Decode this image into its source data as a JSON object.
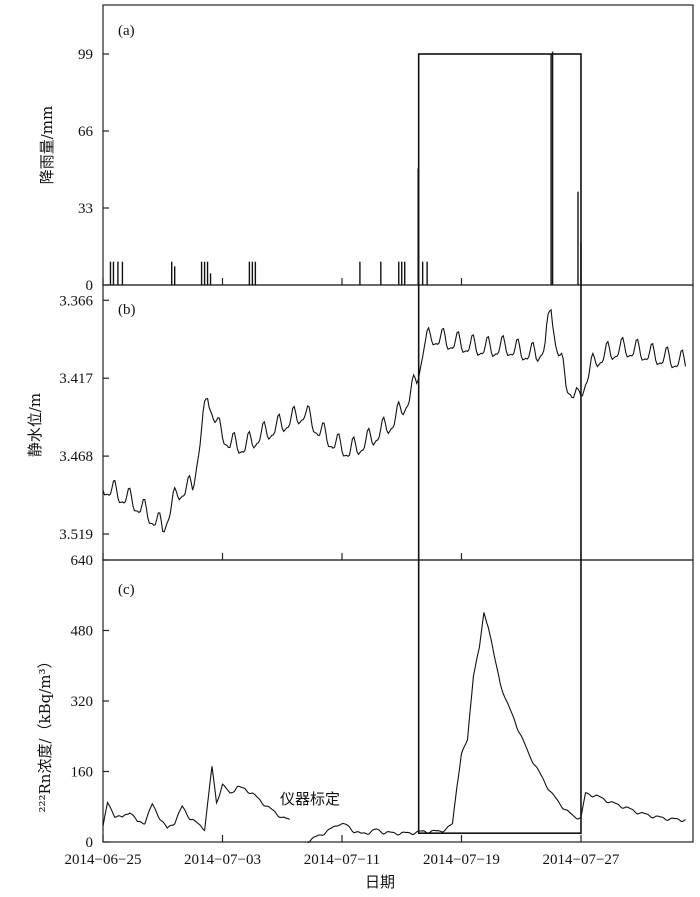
{
  "chart_data": [
    {
      "panel": "(a)",
      "type": "bar",
      "ylabel": "降雨量/mm",
      "yticks": [
        0,
        33,
        66,
        99
      ],
      "ylim": [
        0,
        120
      ],
      "x_type": "date",
      "bars": [
        {
          "date": "2014-06-25.5",
          "value": 10
        },
        {
          "date": "2014-06-25.7",
          "value": 10
        },
        {
          "date": "2014-06-26.0",
          "value": 10
        },
        {
          "date": "2014-06-26.3",
          "value": 10
        },
        {
          "date": "2014-06-29.6",
          "value": 10
        },
        {
          "date": "2014-06-29.8",
          "value": 8
        },
        {
          "date": "2014-07-01.6",
          "value": 10
        },
        {
          "date": "2014-07-01.8",
          "value": 10
        },
        {
          "date": "2014-07-02.0",
          "value": 10
        },
        {
          "date": "2014-07-02.2",
          "value": 5
        },
        {
          "date": "2014-07-04.8",
          "value": 10
        },
        {
          "date": "2014-07-05.0",
          "value": 10
        },
        {
          "date": "2014-07-05.2",
          "value": 10
        },
        {
          "date": "2014-07-12.2",
          "value": 10
        },
        {
          "date": "2014-07-13.6",
          "value": 10
        },
        {
          "date": "2014-07-14.8",
          "value": 10
        },
        {
          "date": "2014-07-15.0",
          "value": 10
        },
        {
          "date": "2014-07-15.2",
          "value": 10
        },
        {
          "date": "2014-07-16.1",
          "value": 50
        },
        {
          "date": "2014-07-16.4",
          "value": 10
        },
        {
          "date": "2014-07-16.7",
          "value": 10
        },
        {
          "date": "2014-07-25.0",
          "value": 99
        },
        {
          "date": "2014-07-25.1",
          "value": 100
        },
        {
          "date": "2014-07-26.8",
          "value": 40
        },
        {
          "date": "2014-07-27.0",
          "value": 18
        }
      ]
    },
    {
      "panel": "(b)",
      "type": "line",
      "ylabel": "静水位/m",
      "yticks": [
        3.366,
        3.417,
        3.468,
        3.519
      ],
      "ylim_inverted": [
        3.356,
        3.536
      ],
      "x_type": "date",
      "series": [
        {
          "points": [
            [
              "2014-06-25.0",
              3.488
            ],
            [
              "2014-06-26.0",
              3.493
            ],
            [
              "2014-06-27.0",
              3.498
            ],
            [
              "2014-06-28.0",
              3.506
            ],
            [
              "2014-06-29.0",
              3.515
            ],
            [
              "2014-06-30.0",
              3.492
            ],
            [
              "2014-07-01.0",
              3.488
            ],
            [
              "2014-07-02.0",
              3.428
            ],
            [
              "2014-07-02.7",
              3.45
            ],
            [
              "2014-07-03.5",
              3.46
            ],
            [
              "2014-07-04.5",
              3.462
            ],
            [
              "2014-07-05.5",
              3.455
            ],
            [
              "2014-07-06.5",
              3.45
            ],
            [
              "2014-07-07.5",
              3.445
            ],
            [
              "2014-07-08.5",
              3.44
            ],
            [
              "2014-07-09.5",
              3.452
            ],
            [
              "2014-07-10.5",
              3.46
            ],
            [
              "2014-07-11.5",
              3.465
            ],
            [
              "2014-07-12.5",
              3.46
            ],
            [
              "2014-07-13.5",
              3.453
            ],
            [
              "2014-07-14.5",
              3.445
            ],
            [
              "2014-07-15.5",
              3.43
            ],
            [
              "2014-07-16.0",
              3.418
            ],
            [
              "2014-07-16.5",
              3.395
            ],
            [
              "2014-07-17.0",
              3.39
            ],
            [
              "2014-07-18.0",
              3.393
            ],
            [
              "2014-07-19.0",
              3.395
            ],
            [
              "2014-07-20.0",
              3.397
            ],
            [
              "2014-07-21.0",
              3.398
            ],
            [
              "2014-07-22.0",
              3.397
            ],
            [
              "2014-07-23.0",
              3.4
            ],
            [
              "2014-07-24.0",
              3.402
            ],
            [
              "2014-07-24.6",
              3.396
            ],
            [
              "2014-07-25.0",
              3.37
            ],
            [
              "2014-07-25.3",
              3.392
            ],
            [
              "2014-07-26.0",
              3.42
            ],
            [
              "2014-07-26.8",
              3.432
            ],
            [
              "2014-07-27.3",
              3.418
            ],
            [
              "2014-07-28.0",
              3.405
            ],
            [
              "2014-07-29.0",
              3.4
            ],
            [
              "2014-07-30.0",
              3.398
            ],
            [
              "2014-07-31.0",
              3.4
            ],
            [
              "2014-08-01.0",
              3.403
            ],
            [
              "2014-08-02.0",
              3.405
            ],
            [
              "2014-08-03.0",
              3.407
            ]
          ]
        }
      ]
    },
    {
      "panel": "(c)",
      "type": "line",
      "ylabel": "²²²Rn浓度/（kBq/m³）",
      "yticks": [
        0,
        160,
        320,
        480,
        640
      ],
      "ylim": [
        0,
        640
      ],
      "xlabel": "日期",
      "xticks": [
        "2014-06-25",
        "2014-07-03",
        "2014-07-11",
        "2014-07-19",
        "2014-07-27"
      ],
      "annotation": "仪器标定",
      "series": [
        {
          "points": [
            [
              "2014-06-25.0",
              35
            ],
            [
              "2014-06-25.3",
              88
            ],
            [
              "2014-06-25.8",
              60
            ],
            [
              "2014-06-26.3",
              55
            ],
            [
              "2014-06-26.8",
              70
            ],
            [
              "2014-06-27.3",
              45
            ],
            [
              "2014-06-27.8",
              45
            ],
            [
              "2014-06-28.3",
              85
            ],
            [
              "2014-06-28.8",
              55
            ],
            [
              "2014-06-29.3",
              30
            ],
            [
              "2014-06-29.8",
              45
            ],
            [
              "2014-06-30.3",
              80
            ],
            [
              "2014-06-30.8",
              55
            ],
            [
              "2014-07-01.3",
              42
            ],
            [
              "2014-07-01.8",
              30
            ],
            [
              "2014-07-02.3",
              170
            ],
            [
              "2014-07-02.6",
              90
            ],
            [
              "2014-07-03.0",
              130
            ],
            [
              "2014-07-03.5",
              110
            ],
            [
              "2014-07-04.0",
              125
            ],
            [
              "2014-07-04.5",
              120
            ],
            [
              "2014-07-05.0",
              110
            ],
            [
              "2014-07-05.5",
              95
            ],
            [
              "2014-07-06.0",
              80
            ],
            [
              "2014-07-06.5",
              68
            ],
            [
              "2014-07-07.0",
              55
            ],
            [
              "2014-07-07.5",
              50
            ]
          ]
        },
        {
          "points": [
            [
              "2014-07-08.7",
              2
            ],
            [
              "2014-07-09.5",
              15
            ],
            [
              "2014-07-10.3",
              30
            ],
            [
              "2014-07-10.8",
              42
            ],
            [
              "2014-07-11.3",
              38
            ],
            [
              "2014-07-11.8",
              25
            ],
            [
              "2014-07-12.3",
              18
            ],
            [
              "2014-07-12.8",
              22
            ],
            [
              "2014-07-13.3",
              28
            ],
            [
              "2014-07-13.8",
              22
            ],
            [
              "2014-07-14.5",
              20
            ],
            [
              "2014-07-15.5",
              20
            ],
            [
              "2014-07-16.5",
              24
            ],
            [
              "2014-07-17.5",
              24
            ],
            [
              "2014-07-18.0",
              30
            ],
            [
              "2014-07-18.4",
              40
            ],
            [
              "2014-07-18.7",
              130
            ],
            [
              "2014-07-19.0",
              200
            ],
            [
              "2014-07-19.4",
              230
            ],
            [
              "2014-07-19.8",
              380
            ],
            [
              "2014-07-20.2",
              440
            ],
            [
              "2014-07-20.5",
              520
            ],
            [
              "2014-07-20.8",
              490
            ],
            [
              "2014-07-21.2",
              420
            ],
            [
              "2014-07-21.6",
              360
            ],
            [
              "2014-07-22.0",
              320
            ],
            [
              "2014-07-22.5",
              280
            ],
            [
              "2014-07-23.0",
              240
            ],
            [
              "2014-07-23.5",
              200
            ],
            [
              "2014-07-24.0",
              170
            ],
            [
              "2014-07-24.5",
              140
            ],
            [
              "2014-07-25.0",
              112
            ],
            [
              "2014-07-25.5",
              90
            ],
            [
              "2014-07-26.0",
              72
            ],
            [
              "2014-07-26.5",
              58
            ],
            [
              "2014-07-27.0",
              55
            ],
            [
              "2014-07-27.3",
              110
            ],
            [
              "2014-07-28.0",
              105
            ],
            [
              "2014-07-29.0",
              90
            ],
            [
              "2014-07-30.0",
              78
            ],
            [
              "2014-07-31.0",
              65
            ],
            [
              "2014-08-01.0",
              57
            ],
            [
              "2014-08-02.0",
              52
            ],
            [
              "2014-08-03.0",
              50
            ]
          ]
        }
      ]
    }
  ],
  "highlight": {
    "from": "2014-07-16",
    "to": "2014-07-27"
  }
}
